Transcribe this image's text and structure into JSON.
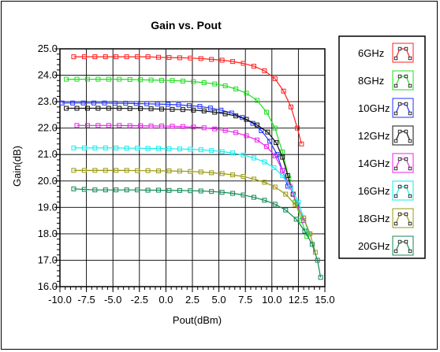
{
  "chart_data": {
    "type": "line",
    "title": "Gain vs. Pout",
    "xlabel": "Pout(dBm)",
    "ylabel": "Gain(dB)",
    "xlim": [
      -10.0,
      15.0
    ],
    "ylim": [
      16.0,
      25.0
    ],
    "xticks": [
      "-10.0",
      "-7.5",
      "-5.0",
      "-2.5",
      "0.0",
      "2.5",
      "5.0",
      "7.5",
      "10.0",
      "12.5",
      "15.0"
    ],
    "yticks": [
      "16.0",
      "17.0",
      "18.0",
      "19.0",
      "20.0",
      "21.0",
      "22.0",
      "23.0",
      "24.0",
      "25.0"
    ],
    "grid": true,
    "legend_position": "right",
    "series": [
      {
        "name": "6GHz",
        "color": "#ff2020",
        "points": [
          [
            -8.7,
            24.7
          ],
          [
            -7.7,
            24.7
          ],
          [
            -6.7,
            24.7
          ],
          [
            -5.7,
            24.7
          ],
          [
            -4.7,
            24.7
          ],
          [
            -3.7,
            24.7
          ],
          [
            -2.7,
            24.7
          ],
          [
            -1.7,
            24.7
          ],
          [
            -0.7,
            24.68
          ],
          [
            0.3,
            24.67
          ],
          [
            1.3,
            24.66
          ],
          [
            2.3,
            24.65
          ],
          [
            3.3,
            24.63
          ],
          [
            4.3,
            24.6
          ],
          [
            5.3,
            24.57
          ],
          [
            6.3,
            24.52
          ],
          [
            7.3,
            24.45
          ],
          [
            8.3,
            24.34
          ],
          [
            9.3,
            24.17
          ],
          [
            10.3,
            23.87
          ],
          [
            11.1,
            23.4
          ],
          [
            11.8,
            22.8
          ],
          [
            12.4,
            22.0
          ],
          [
            12.8,
            21.4
          ]
        ]
      },
      {
        "name": "8GHz",
        "color": "#22dd22",
        "points": [
          [
            -9.4,
            23.85
          ],
          [
            -8.4,
            23.85
          ],
          [
            -7.4,
            23.85
          ],
          [
            -6.4,
            23.85
          ],
          [
            -5.4,
            23.85
          ],
          [
            -4.4,
            23.85
          ],
          [
            -3.4,
            23.84
          ],
          [
            -2.4,
            23.83
          ],
          [
            -1.4,
            23.82
          ],
          [
            -0.4,
            23.81
          ],
          [
            0.6,
            23.8
          ],
          [
            1.6,
            23.78
          ],
          [
            2.6,
            23.76
          ],
          [
            3.6,
            23.72
          ],
          [
            4.6,
            23.67
          ],
          [
            5.6,
            23.6
          ],
          [
            6.6,
            23.48
          ],
          [
            7.6,
            23.32
          ],
          [
            8.6,
            23.05
          ],
          [
            9.5,
            22.6
          ],
          [
            10.3,
            22.0
          ],
          [
            11.0,
            21.1
          ],
          [
            11.6,
            20.1
          ],
          [
            12.2,
            19.2
          ],
          [
            12.8,
            18.5
          ],
          [
            13.3,
            17.9
          ]
        ]
      },
      {
        "name": "10GHz",
        "color": "#2233ff",
        "points": [
          [
            -9.8,
            22.95
          ],
          [
            -8.8,
            22.95
          ],
          [
            -7.8,
            22.95
          ],
          [
            -6.8,
            22.95
          ],
          [
            -5.8,
            22.95
          ],
          [
            -4.8,
            22.94
          ],
          [
            -3.8,
            22.94
          ],
          [
            -2.8,
            22.93
          ],
          [
            -1.8,
            22.92
          ],
          [
            -0.8,
            22.91
          ],
          [
            0.2,
            22.9
          ],
          [
            1.2,
            22.88
          ],
          [
            2.2,
            22.85
          ],
          [
            3.2,
            22.82
          ],
          [
            4.2,
            22.76
          ],
          [
            5.2,
            22.68
          ],
          [
            6.2,
            22.57
          ],
          [
            7.2,
            22.4
          ],
          [
            8.2,
            22.18
          ],
          [
            9.0,
            21.9
          ],
          [
            9.8,
            21.5
          ],
          [
            10.5,
            21.0
          ],
          [
            11.0,
            20.4
          ],
          [
            11.5,
            19.8
          ]
        ]
      },
      {
        "name": "12GHz",
        "color": "#111111",
        "points": [
          [
            -9.4,
            22.75
          ],
          [
            -8.4,
            22.75
          ],
          [
            -7.4,
            22.75
          ],
          [
            -6.4,
            22.75
          ],
          [
            -5.4,
            22.75
          ],
          [
            -4.4,
            22.75
          ],
          [
            -3.4,
            22.74
          ],
          [
            -2.4,
            22.74
          ],
          [
            -1.4,
            22.73
          ],
          [
            -0.4,
            22.72
          ],
          [
            0.6,
            22.71
          ],
          [
            1.6,
            22.7
          ],
          [
            2.6,
            22.68
          ],
          [
            3.6,
            22.65
          ],
          [
            4.6,
            22.6
          ],
          [
            5.6,
            22.54
          ],
          [
            6.6,
            22.46
          ],
          [
            7.6,
            22.33
          ],
          [
            8.6,
            22.12
          ],
          [
            9.6,
            21.85
          ],
          [
            10.4,
            21.45
          ],
          [
            11.0,
            20.9
          ],
          [
            11.5,
            20.2
          ],
          [
            12.0,
            19.5
          ]
        ]
      },
      {
        "name": "14GHz",
        "color": "#ee22ee",
        "points": [
          [
            -8.4,
            22.1
          ],
          [
            -7.4,
            22.1
          ],
          [
            -6.4,
            22.1
          ],
          [
            -5.4,
            22.1
          ],
          [
            -4.4,
            22.1
          ],
          [
            -3.4,
            22.09
          ],
          [
            -2.4,
            22.09
          ],
          [
            -1.4,
            22.08
          ],
          [
            -0.4,
            22.08
          ],
          [
            0.6,
            22.07
          ],
          [
            1.6,
            22.06
          ],
          [
            2.6,
            22.04
          ],
          [
            3.6,
            22.01
          ],
          [
            4.6,
            21.97
          ],
          [
            5.6,
            21.91
          ],
          [
            6.6,
            21.83
          ],
          [
            7.6,
            21.71
          ],
          [
            8.6,
            21.55
          ],
          [
            9.5,
            21.3
          ],
          [
            10.3,
            20.95
          ],
          [
            11.0,
            20.4
          ],
          [
            11.7,
            19.8
          ],
          [
            12.4,
            19.1
          ],
          [
            13.0,
            18.5
          ]
        ]
      },
      {
        "name": "16GHz",
        "color": "#11eeee",
        "points": [
          [
            -8.7,
            21.25
          ],
          [
            -7.7,
            21.25
          ],
          [
            -6.7,
            21.25
          ],
          [
            -5.7,
            21.25
          ],
          [
            -4.7,
            21.25
          ],
          [
            -3.7,
            21.24
          ],
          [
            -2.7,
            21.24
          ],
          [
            -1.7,
            21.23
          ],
          [
            -0.7,
            21.23
          ],
          [
            0.3,
            21.22
          ],
          [
            1.3,
            21.21
          ],
          [
            2.3,
            21.2
          ],
          [
            3.3,
            21.18
          ],
          [
            4.3,
            21.15
          ],
          [
            5.3,
            21.11
          ],
          [
            6.3,
            21.06
          ],
          [
            7.3,
            20.98
          ],
          [
            8.3,
            20.87
          ],
          [
            9.3,
            20.72
          ],
          [
            10.2,
            20.5
          ],
          [
            11.0,
            20.2
          ],
          [
            11.8,
            19.75
          ],
          [
            12.5,
            19.2
          ],
          [
            13.0,
            18.6
          ],
          [
            13.5,
            18.0
          ]
        ]
      },
      {
        "name": "18GHz",
        "color": "#999911",
        "points": [
          [
            -8.7,
            20.4
          ],
          [
            -7.7,
            20.4
          ],
          [
            -6.7,
            20.4
          ],
          [
            -5.7,
            20.4
          ],
          [
            -4.7,
            20.4
          ],
          [
            -3.7,
            20.4
          ],
          [
            -2.7,
            20.39
          ],
          [
            -1.7,
            20.39
          ],
          [
            -0.7,
            20.38
          ],
          [
            0.3,
            20.38
          ],
          [
            1.3,
            20.37
          ],
          [
            2.3,
            20.36
          ],
          [
            3.3,
            20.34
          ],
          [
            4.3,
            20.31
          ],
          [
            5.3,
            20.28
          ],
          [
            6.3,
            20.23
          ],
          [
            7.3,
            20.17
          ],
          [
            8.3,
            20.07
          ],
          [
            9.3,
            19.95
          ],
          [
            10.3,
            19.77
          ],
          [
            11.3,
            19.5
          ],
          [
            12.2,
            19.1
          ],
          [
            13.0,
            18.6
          ],
          [
            13.6,
            18.0
          ],
          [
            14.1,
            17.3
          ]
        ]
      },
      {
        "name": "20GHz",
        "color": "#118855",
        "points": [
          [
            -8.7,
            19.7
          ],
          [
            -7.7,
            19.68
          ],
          [
            -6.7,
            19.66
          ],
          [
            -5.7,
            19.66
          ],
          [
            -4.7,
            19.66
          ],
          [
            -3.7,
            19.66
          ],
          [
            -2.7,
            19.66
          ],
          [
            -1.7,
            19.65
          ],
          [
            -0.7,
            19.65
          ],
          [
            0.3,
            19.64
          ],
          [
            1.3,
            19.64
          ],
          [
            2.3,
            19.63
          ],
          [
            3.3,
            19.62
          ],
          [
            4.3,
            19.6
          ],
          [
            5.3,
            19.57
          ],
          [
            6.3,
            19.53
          ],
          [
            7.3,
            19.47
          ],
          [
            8.3,
            19.38
          ],
          [
            9.3,
            19.27
          ],
          [
            10.3,
            19.12
          ],
          [
            11.3,
            18.9
          ],
          [
            12.3,
            18.55
          ],
          [
            13.1,
            18.1
          ],
          [
            13.8,
            17.6
          ],
          [
            14.3,
            17.0
          ],
          [
            14.6,
            16.35
          ]
        ]
      }
    ]
  }
}
